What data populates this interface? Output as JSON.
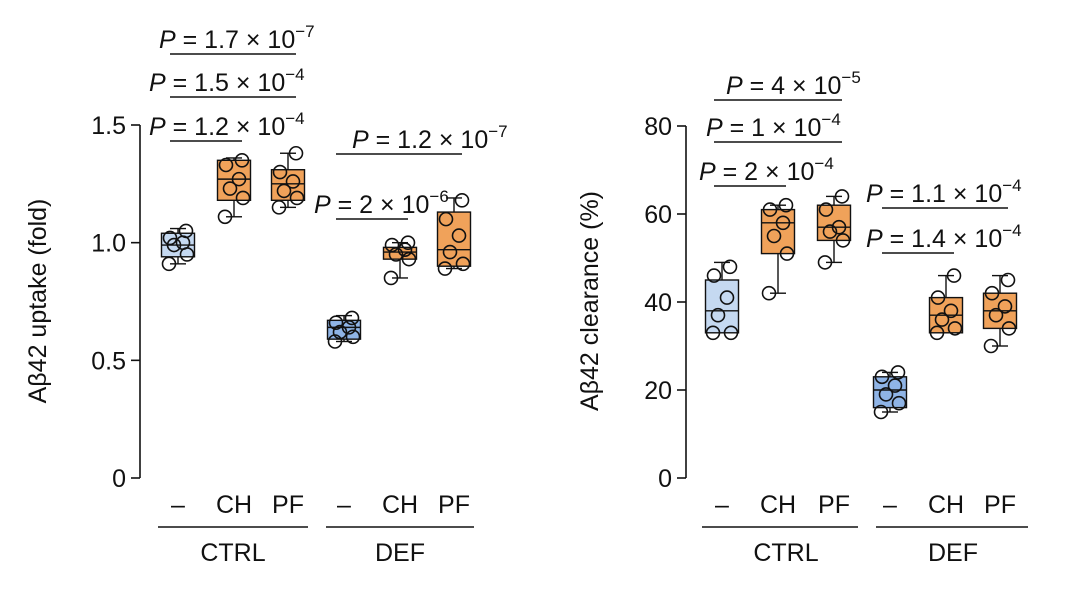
{
  "chart_data": [
    {
      "type": "box",
      "ylabel": "Aβ42 uptake (fold)",
      "ylim": [
        0,
        1.5
      ],
      "yticks": [
        0,
        0.5,
        1.0,
        1.5
      ],
      "ytick_labels": [
        "0",
        "0.5",
        "1.0",
        "1.5"
      ],
      "grid": false,
      "groups": [
        {
          "label": "CTRL",
          "categories": [
            "–",
            "CH",
            "PF"
          ]
        },
        {
          "label": "DEF",
          "categories": [
            "–",
            "CH",
            "PF"
          ]
        }
      ],
      "boxes": [
        {
          "group": "CTRL",
          "category": "–",
          "color": "#c5d9f1",
          "min": 0.91,
          "q1": 0.94,
          "median": 0.99,
          "q3": 1.04,
          "max": 1.06,
          "points": [
            0.91,
            0.95,
            0.99,
            1.0,
            1.02,
            1.05
          ]
        },
        {
          "group": "CTRL",
          "category": "CH",
          "color": "#f0a25a",
          "min": 1.11,
          "q1": 1.18,
          "median": 1.27,
          "q3": 1.35,
          "max": 1.36,
          "points": [
            1.11,
            1.19,
            1.23,
            1.27,
            1.33,
            1.35
          ]
        },
        {
          "group": "CTRL",
          "category": "PF",
          "color": "#f0a25a",
          "min": 1.15,
          "q1": 1.18,
          "median": 1.25,
          "q3": 1.31,
          "max": 1.38,
          "points": [
            1.15,
            1.19,
            1.22,
            1.26,
            1.3,
            1.38
          ]
        },
        {
          "group": "DEF",
          "category": "–",
          "color": "#8fb4e6",
          "min": 0.58,
          "q1": 0.59,
          "median": 0.64,
          "q3": 0.67,
          "max": 0.69,
          "points": [
            0.58,
            0.6,
            0.62,
            0.64,
            0.66,
            0.68
          ]
        },
        {
          "group": "DEF",
          "category": "CH",
          "color": "#f0a25a",
          "min": 0.85,
          "q1": 0.93,
          "median": 0.96,
          "q3": 0.98,
          "max": 1.0,
          "points": [
            0.85,
            0.93,
            0.95,
            0.97,
            0.99,
            1.0
          ]
        },
        {
          "group": "DEF",
          "category": "PF",
          "color": "#f0a25a",
          "min": 0.89,
          "q1": 0.9,
          "median": 0.97,
          "q3": 1.13,
          "max": 1.19,
          "points": [
            0.89,
            0.91,
            0.96,
            1.03,
            1.1,
            1.18
          ]
        }
      ],
      "annotations": [
        {
          "from": [
            "CTRL",
            "–"
          ],
          "to": [
            "CTRL",
            "PF"
          ],
          "p_base": "P = 1.7 × 10",
          "p_exp": "−7"
        },
        {
          "from": [
            "CTRL",
            "–"
          ],
          "to": [
            "CTRL",
            "PF"
          ],
          "p_base": "P = 1.5 × 10",
          "p_exp": "−4"
        },
        {
          "from": [
            "CTRL",
            "–"
          ],
          "to": [
            "CTRL",
            "CH"
          ],
          "p_base": "P = 1.2 × 10",
          "p_exp": "−4"
        },
        {
          "from": [
            "DEF",
            "–"
          ],
          "to": [
            "DEF",
            "PF"
          ],
          "p_base": "P = 1.2 × 10",
          "p_exp": "−7"
        },
        {
          "from": [
            "DEF",
            "–"
          ],
          "to": [
            "DEF",
            "CH"
          ],
          "p_base": "P = 2 × 10",
          "p_exp": "−6"
        }
      ]
    },
    {
      "type": "box",
      "ylabel": "Aβ42 clearance (%)",
      "ylim": [
        0,
        80
      ],
      "yticks": [
        0,
        20,
        40,
        60,
        80
      ],
      "ytick_labels": [
        "0",
        "20",
        "40",
        "60",
        "80"
      ],
      "grid": false,
      "groups": [
        {
          "label": "CTRL",
          "categories": [
            "–",
            "CH",
            "PF"
          ]
        },
        {
          "label": "DEF",
          "categories": [
            "–",
            "CH",
            "PF"
          ]
        }
      ],
      "boxes": [
        {
          "group": "CTRL",
          "category": "–",
          "color": "#c5d9f1",
          "min": 33,
          "q1": 33,
          "median": 38,
          "q3": 45,
          "max": 49,
          "points": [
            33,
            33,
            37,
            41,
            46,
            48
          ]
        },
        {
          "group": "CTRL",
          "category": "CH",
          "color": "#f0a25a",
          "min": 42,
          "q1": 51,
          "median": 58,
          "q3": 61,
          "max": 62,
          "points": [
            42,
            51,
            55,
            58,
            61,
            62
          ]
        },
        {
          "group": "CTRL",
          "category": "PF",
          "color": "#f0a25a",
          "min": 49,
          "q1": 54,
          "median": 57,
          "q3": 62,
          "max": 64,
          "points": [
            49,
            54,
            56,
            57,
            61,
            64
          ]
        },
        {
          "group": "DEF",
          "category": "–",
          "color": "#8fb4e6",
          "min": 15,
          "q1": 16,
          "median": 20,
          "q3": 23,
          "max": 24,
          "points": [
            15,
            17,
            19,
            21,
            23,
            24
          ]
        },
        {
          "group": "DEF",
          "category": "CH",
          "color": "#f0a25a",
          "min": 33,
          "q1": 33,
          "median": 37,
          "q3": 41,
          "max": 46,
          "points": [
            33,
            34,
            36,
            38,
            41,
            46
          ]
        },
        {
          "group": "DEF",
          "category": "PF",
          "color": "#f0a25a",
          "min": 30,
          "q1": 34,
          "median": 38,
          "q3": 42,
          "max": 46,
          "points": [
            30,
            34,
            37,
            39,
            42,
            45
          ]
        }
      ],
      "annotations": [
        {
          "from": [
            "CTRL",
            "–"
          ],
          "to": [
            "CTRL",
            "PF"
          ],
          "p_base": "P = 4 × 10",
          "p_exp": "−5"
        },
        {
          "from": [
            "CTRL",
            "–"
          ],
          "to": [
            "CTRL",
            "PF"
          ],
          "p_base": "P = 1 × 10",
          "p_exp": "−4"
        },
        {
          "from": [
            "CTRL",
            "–"
          ],
          "to": [
            "CTRL",
            "CH"
          ],
          "p_base": "P = 2 × 10",
          "p_exp": "−4"
        },
        {
          "from": [
            "DEF",
            "–"
          ],
          "to": [
            "DEF",
            "PF"
          ],
          "p_base": "P = 1.1 × 10",
          "p_exp": "−4"
        },
        {
          "from": [
            "DEF",
            "–"
          ],
          "to": [
            "DEF",
            "CH"
          ],
          "p_base": "P = 1.4 × 10",
          "p_exp": "−4"
        }
      ]
    }
  ]
}
